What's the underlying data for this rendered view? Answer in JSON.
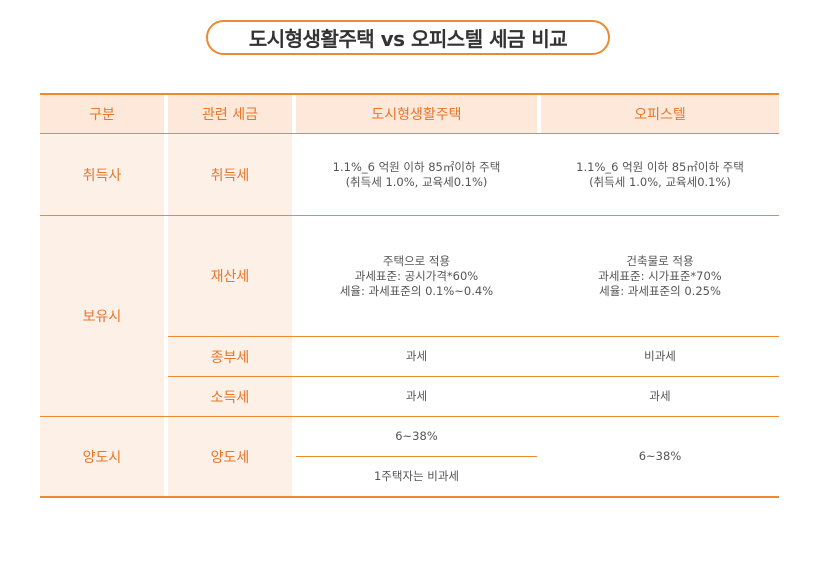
{
  "title": "도시형생활주택 vs 오피스텔 세금 비교",
  "headers": {
    "category": "구분",
    "tax": "관련 세금",
    "col_a": "도시형생활주택",
    "col_b": "오피스텔"
  },
  "rows": {
    "acquisition": {
      "category": "취득사",
      "tax": "취득세",
      "a_lines": [
        "1.1%_6 억원 이하 85㎡이하 주택",
        "(취득세 1.0%, 교육세0.1%)"
      ],
      "b_lines": [
        "1.1%_6 억원 이하 85㎡이하 주택",
        "(취득세 1.0%, 교육세0.1%)"
      ]
    },
    "holding": {
      "category": "보유시",
      "property": {
        "tax": "재산세",
        "a_lines": [
          "주택으로 적용",
          "과세표준: 공시가격*60%",
          "세율: 과세표준의 0.1%~0.4%"
        ],
        "b_lines": [
          "건축물로 적용",
          "과세표준: 시가표준*70%",
          "세율: 과세표준의 0.25%"
        ]
      },
      "comprehensive": {
        "tax": "종부세",
        "a": "과세",
        "b": "비과세"
      },
      "income": {
        "tax": "소득세",
        "a": "과세",
        "b": "과세"
      }
    },
    "transfer": {
      "category": "양도시",
      "tax": "양도세",
      "a_top": "6~38%",
      "a_bottom": "1주택자는 비과세",
      "b": "6~38%"
    }
  },
  "colors": {
    "accent": "#ec8a32",
    "header_bg": "#fde8d9",
    "label_bg": "#fdf0e6"
  }
}
